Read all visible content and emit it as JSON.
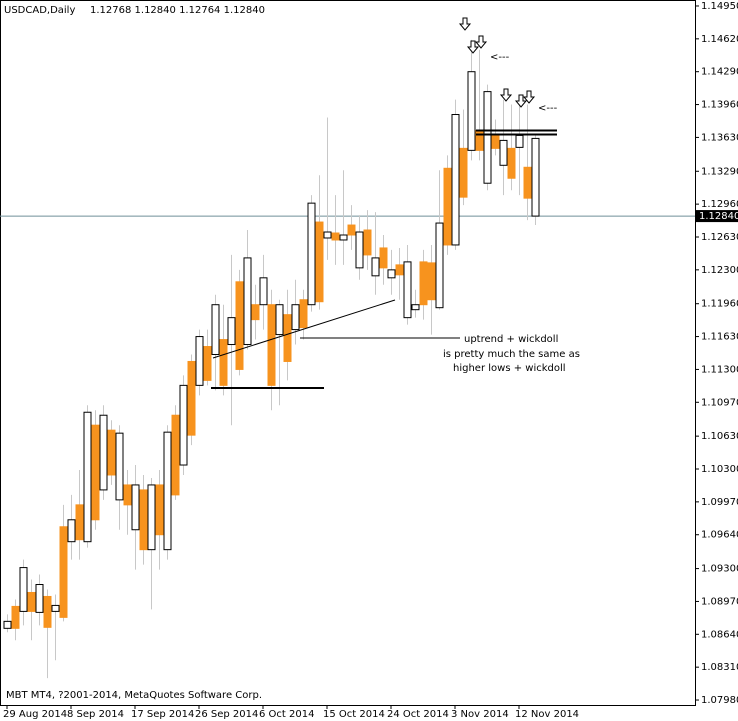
{
  "chart_data": {
    "type": "candlestick",
    "title": "USDCAD,Daily",
    "subtitle": "1.12768 1.12840 1.12764 1.12840",
    "footer": "MBT MT4, ?2001-2014, MetaQuotes Software Corp.",
    "categories": [
      "29 Aug 2014",
      null,
      null,
      null,
      null,
      null,
      null,
      null,
      "8 Sep 2014",
      null,
      null,
      null,
      null,
      null,
      null,
      null,
      "17 Sep 2014",
      null,
      null,
      null,
      null,
      null,
      null,
      null,
      "26 Sep 2014",
      null,
      null,
      null,
      null,
      null,
      null,
      null,
      "6 Oct 2014",
      null,
      null,
      null,
      null,
      null,
      null,
      null,
      "15 Oct 2014",
      null,
      null,
      null,
      null,
      null,
      null,
      null,
      "24 Oct 2014",
      null,
      null,
      null,
      null,
      null,
      null,
      null,
      "3 Nov 2014",
      null,
      null,
      null,
      null,
      null,
      null,
      null,
      "12 Nov 2014",
      null,
      null
    ],
    "open": [
      1.0877,
      1.087,
      1.0931,
      1.0887,
      1.0914,
      1.0871,
      1.0893,
      1.0881,
      1.0979,
      1.0959,
      1.1087,
      1.0979,
      1.1084,
      1.1024,
      1.1066,
      1.0994,
      1.1014,
      1.0949,
      1.1014,
      1.0964,
      1.1067,
      1.1004,
      1.1114,
      1.1064,
      1.1163,
      1.1119,
      1.1195,
      1.1114,
      1.1182,
      1.113,
      1.1242,
      1.118,
      1.1222,
      1.1114,
      1.1195,
      1.1138,
      1.1195,
      1.1172,
      1.1297,
      1.1198,
      1.1268,
      1.126,
      1.1265,
      1.1265,
      1.1268,
      1.1245,
      1.1242,
      1.1232,
      1.123,
      1.1225,
      1.1238,
      1.1195,
      1.1195,
      1.12,
      1.1277,
      1.1255,
      1.1386,
      1.1303,
      1.1429,
      1.135,
      1.1409,
      1.1352,
      1.136,
      1.1322,
      1.1365,
      1.1302,
      1.1362
    ],
    "high": [
      1.0884,
      1.0899,
      1.0939,
      1.0919,
      1.0924,
      1.0909,
      1.0904,
      1.0994,
      1.1004,
      1.1029,
      1.1094,
      1.1089,
      1.1094,
      1.1079,
      1.1074,
      1.1029,
      1.1034,
      1.1024,
      1.1021,
      1.1029,
      1.1074,
      1.1094,
      1.1124,
      1.1145,
      1.117,
      1.117,
      1.1205,
      1.1195,
      1.1245,
      1.123,
      1.127,
      1.1215,
      1.1245,
      1.121,
      1.12,
      1.121,
      1.122,
      1.121,
      1.1305,
      1.1325,
      1.1383,
      1.1305,
      1.133,
      1.1295,
      1.1285,
      1.129,
      1.1288,
      1.1265,
      1.125,
      1.1252,
      1.1255,
      1.121,
      1.125,
      1.1255,
      1.133,
      1.1345,
      1.1401,
      1.1391,
      1.1461,
      1.1451,
      1.1416,
      1.1381,
      1.1401,
      1.1396,
      1.1401,
      1.1396,
      1.1365
    ],
    "low": [
      1.0866,
      1.0858,
      1.0873,
      1.0858,
      1.0873,
      1.082,
      1.0838,
      1.0877,
      1.0939,
      1.0939,
      1.0951,
      1.0969,
      1.0999,
      1.1014,
      1.0969,
      1.0964,
      1.0929,
      1.0934,
      1.0889,
      1.0929,
      1.0939,
      1.0999,
      1.1024,
      1.1054,
      1.1104,
      1.1114,
      1.1109,
      1.1104,
      1.1074,
      1.1124,
      1.115,
      1.116,
      1.117,
      1.1089,
      1.1094,
      1.1119,
      1.1155,
      1.116,
      1.1188,
      1.119,
      1.124,
      1.1235,
      1.1235,
      1.125,
      1.122,
      1.123,
      1.1205,
      1.1215,
      1.1205,
      1.12,
      1.1175,
      1.1182,
      1.118,
      1.1165,
      1.119,
      1.1245,
      1.125,
      1.1295,
      1.134,
      1.134,
      1.131,
      1.1345,
      1.1305,
      1.131,
      1.1305,
      1.128,
      1.1275
    ],
    "close": [
      1.087,
      1.0892,
      1.0887,
      1.0906,
      1.0886,
      1.0902,
      1.0887,
      1.0972,
      1.0957,
      1.0994,
      1.0957,
      1.1074,
      1.1009,
      1.1069,
      1.0999,
      1.1014,
      1.0969,
      1.1009,
      1.0949,
      1.1014,
      1.0949,
      1.1084,
      1.1034,
      1.1138,
      1.1114,
      1.1153,
      1.1145,
      1.116,
      1.1155,
      1.1218,
      1.1155,
      1.1195,
      1.1195,
      1.1195,
      1.1165,
      1.1185,
      1.117,
      1.12,
      1.1195,
      1.1278,
      1.1262,
      1.1267,
      1.126,
      1.1275,
      1.1232,
      1.127,
      1.1224,
      1.1252,
      1.1222,
      1.1235,
      1.1182,
      1.119,
      1.1238,
      1.1237,
      1.1192,
      1.1332,
      1.1255,
      1.1352,
      1.135,
      1.137,
      1.1317,
      1.1365,
      1.1335,
      1.1352,
      1.1353,
      1.1333,
      1.1284
    ],
    "up_color": "#f7931e",
    "down_color": "#ffffff",
    "wick_color": "#c8c8c8",
    "ylim": [
      1.0793,
      1.1501
    ],
    "yticks": [
      {
        "value": 1.1495,
        "label": "1.14950"
      },
      {
        "value": 1.1462,
        "label": "1.14620"
      },
      {
        "value": 1.1429,
        "label": "1.14290"
      },
      {
        "value": 1.1396,
        "label": "1.13960"
      },
      {
        "value": 1.1363,
        "label": "1.13630"
      },
      {
        "value": 1.1329,
        "label": "1.13290"
      },
      {
        "value": 1.1296,
        "label": "1.12960"
      },
      {
        "value": 1.1263,
        "label": "1.12630"
      },
      {
        "value": 1.123,
        "label": "1.12300"
      },
      {
        "value": 1.1196,
        "label": "1.11960"
      },
      {
        "value": 1.1163,
        "label": "1.11630"
      },
      {
        "value": 1.113,
        "label": "1.11300"
      },
      {
        "value": 1.1097,
        "label": "1.10970"
      },
      {
        "value": 1.1063,
        "label": "1.10630"
      },
      {
        "value": 1.103,
        "label": "1.10300"
      },
      {
        "value": 1.0997,
        "label": "1.09970"
      },
      {
        "value": 1.0964,
        "label": "1.09640"
      },
      {
        "value": 1.093,
        "label": "1.09300"
      },
      {
        "value": 1.0897,
        "label": "1.08970"
      },
      {
        "value": 1.0864,
        "label": "1.08640"
      },
      {
        "value": 1.0831,
        "label": "1.08310"
      },
      {
        "value": 1.0798,
        "label": "1.07980"
      }
    ],
    "current_price": {
      "value": 1.1284,
      "label": "1.12840"
    },
    "annotations": [
      "uptrend + wickdoll",
      "is pretty much the same as",
      "higher lows + wickdoll",
      "<---",
      "<---"
    ]
  }
}
